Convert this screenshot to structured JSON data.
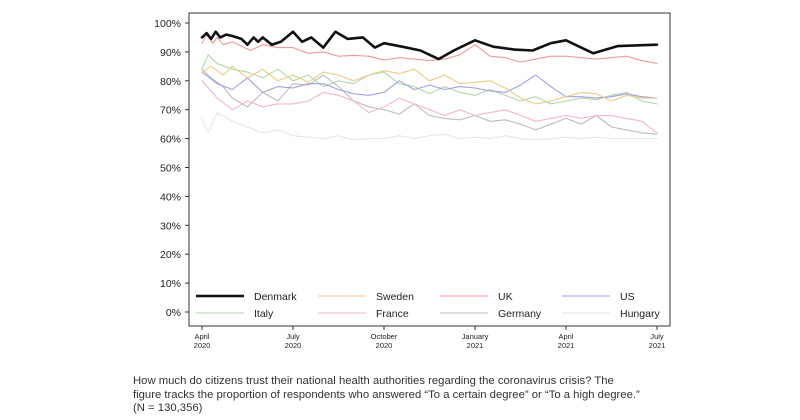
{
  "caption": {
    "line1": "How much do citizens trust their national health authorities regarding the coronavirus crisis? The",
    "line2": "figure tracks the proportion of respondents who answered “To a certain degree” or “To a high degree.”",
    "line3": "(N = 130,356)"
  },
  "chart_data": {
    "type": "line",
    "title": "",
    "xlabel": "",
    "ylabel": "",
    "ylim": [
      0,
      100
    ],
    "y_ticks": [
      "0%",
      "10%",
      "20%",
      "30%",
      "40%",
      "50%",
      "60%",
      "70%",
      "80%",
      "90%",
      "100%"
    ],
    "x_ticks": [
      {
        "x": 0,
        "line1": "April",
        "line2": "2020"
      },
      {
        "x": 3,
        "line1": "July",
        "line2": "2020"
      },
      {
        "x": 6,
        "line1": "October",
        "line2": "2020"
      },
      {
        "x": 9,
        "line1": "January",
        "line2": "2021"
      },
      {
        "x": 12,
        "line1": "April",
        "line2": "2021"
      },
      {
        "x": 15,
        "line1": "July",
        "line2": "2021"
      }
    ],
    "x_unit": "months since April 2020",
    "grid": false,
    "legend_position": "bottom inside plot, 4 columns",
    "series": [
      {
        "name": "Denmark",
        "color": "#111111",
        "width": 2.6,
        "x": [
          0,
          0.15,
          0.3,
          0.45,
          0.6,
          0.8,
          1.0,
          1.3,
          1.5,
          1.7,
          1.85,
          2.0,
          2.3,
          2.6,
          3.0,
          3.3,
          3.6,
          4.0,
          4.4,
          4.8,
          5.3,
          5.7,
          6.0,
          6.6,
          7.2,
          7.8,
          8.3,
          9.0,
          9.6,
          10.3,
          10.9,
          11.5,
          12.0,
          12.9,
          13.7,
          14.4,
          15.0
        ],
        "y": [
          95,
          96.5,
          94.5,
          97,
          95,
          96,
          95.5,
          94.5,
          92.5,
          95,
          93.5,
          95,
          92.5,
          93.5,
          97,
          93.5,
          95,
          91.5,
          97,
          94.5,
          95,
          91.5,
          93,
          91.8,
          90.5,
          87.5,
          90.5,
          94,
          91.8,
          90.8,
          90.5,
          93,
          94,
          89.5,
          92,
          92.3,
          92.5
        ]
      },
      {
        "name": "Sweden",
        "color": "#e8cc8a",
        "width": 1.1,
        "x": [
          0,
          0.3,
          0.7,
          1.0,
          1.5,
          2.0,
          2.5,
          3.0,
          3.5,
          4.0,
          4.5,
          5.0,
          5.5,
          6.0,
          6.5,
          7.0,
          7.5,
          8.0,
          8.5,
          9.0,
          9.5,
          10.0,
          10.5,
          11.0,
          11.5,
          12.0,
          12.5,
          13.0,
          13.5,
          14.0,
          14.5,
          15.0
        ],
        "y": [
          83,
          85,
          82,
          85,
          81,
          84,
          80,
          82,
          79.5,
          83,
          82,
          80,
          82,
          83.5,
          82.5,
          84,
          80,
          82,
          79,
          79.5,
          80,
          77.5,
          74,
          72,
          73,
          74.5,
          76,
          75.5,
          73,
          75,
          74,
          74
        ]
      },
      {
        "name": "UK",
        "color": "#ee9a9a",
        "width": 1.1,
        "x": [
          0,
          0.15,
          0.35,
          0.5,
          0.7,
          1.0,
          1.3,
          1.6,
          2.0,
          2.5,
          3.0,
          3.5,
          4.0,
          4.5,
          5.0,
          5.5,
          6.0,
          6.5,
          7.0,
          7.5,
          8.0,
          8.5,
          9.0,
          9.5,
          10.0,
          10.5,
          11.0,
          11.5,
          12.0,
          12.5,
          13.0,
          13.5,
          14.0,
          14.5,
          15.0
        ],
        "y": [
          93,
          96,
          93,
          95,
          92.5,
          93.5,
          92,
          90.5,
          92.5,
          91.5,
          91.5,
          89.5,
          90,
          88.5,
          88.8,
          88.5,
          87.2,
          88,
          87.5,
          87,
          87.5,
          89,
          92.5,
          88.5,
          88,
          86.5,
          87.5,
          88.5,
          88.5,
          88,
          87.5,
          88,
          88.5,
          87,
          86
        ]
      },
      {
        "name": "US",
        "color": "#a0a0dc",
        "width": 1.1,
        "x": [
          0,
          0.5,
          1.0,
          1.5,
          2.0,
          2.5,
          3.0,
          3.5,
          4.0,
          4.5,
          5.0,
          5.5,
          6.0,
          6.5,
          7.0,
          7.5,
          8.0,
          8.5,
          9.0,
          9.5,
          10.0,
          10.5,
          11.0,
          11.5,
          12.0,
          12.5,
          13.0,
          13.5,
          14.0,
          14.5,
          15.0
        ],
        "y": [
          83,
          79,
          77,
          81,
          76,
          78,
          77.5,
          79,
          79,
          77,
          75.5,
          75,
          76,
          80,
          77,
          78.5,
          77,
          78,
          77.5,
          76.5,
          76,
          78.5,
          82,
          78,
          74.5,
          74.5,
          74,
          74.5,
          75.5,
          74.5,
          74
        ]
      },
      {
        "name": "Italy",
        "color": "#b2d8a8",
        "width": 1.1,
        "x": [
          0,
          0.2,
          0.5,
          1.0,
          1.5,
          2.0,
          2.5,
          3.0,
          3.5,
          4.0,
          4.5,
          5.0,
          5.5,
          6.0,
          6.5,
          7.0,
          7.5,
          8.0,
          8.5,
          9.0,
          9.5,
          10.0,
          10.5,
          11.0,
          11.5,
          12.0,
          12.5,
          13.0,
          13.5,
          14.0,
          14.5,
          15.0
        ],
        "y": [
          84,
          89,
          86,
          84,
          83,
          81,
          84,
          80,
          82,
          78,
          80,
          79,
          82,
          83,
          79,
          78,
          75.5,
          78,
          76,
          75,
          77,
          75,
          73,
          74.5,
          72,
          73,
          74,
          73.5,
          75,
          76,
          73,
          72
        ]
      },
      {
        "name": "France",
        "color": "#f2b8c4",
        "width": 1.1,
        "x": [
          0,
          0.5,
          1.0,
          1.5,
          2.0,
          2.5,
          3.0,
          3.5,
          4.0,
          4.5,
          5.0,
          5.5,
          6.0,
          6.5,
          7.0,
          7.5,
          8.0,
          8.5,
          9.0,
          9.5,
          10.0,
          10.5,
          11.0,
          11.5,
          12.0,
          12.5,
          13.0,
          13.5,
          14.0,
          14.5,
          15.0
        ],
        "y": [
          80,
          74,
          70,
          73,
          71,
          72,
          72,
          73,
          76,
          75,
          73,
          69,
          71,
          74,
          72,
          70,
          68,
          70,
          68,
          69,
          70,
          68,
          66,
          67,
          68,
          67,
          68,
          68,
          67,
          66,
          62
        ]
      },
      {
        "name": "Germany",
        "color": "#bcbcbc",
        "width": 1.1,
        "x": [
          0,
          0.3,
          0.7,
          1.0,
          1.5,
          2.0,
          2.5,
          3.0,
          3.5,
          4.0,
          4.5,
          5.0,
          5.5,
          6.0,
          6.5,
          7.0,
          7.5,
          8.0,
          8.5,
          9.0,
          9.5,
          10.0,
          10.5,
          11.0,
          11.5,
          12.0,
          12.5,
          13.0,
          13.5,
          14.0,
          14.5,
          15.0
        ],
        "y": [
          84,
          81,
          78,
          74,
          71,
          76,
          73,
          79,
          78.5,
          82,
          78,
          73,
          71,
          70,
          68.5,
          72,
          68,
          67,
          66.5,
          68,
          66,
          66.5,
          65,
          63,
          65,
          67,
          65,
          68,
          64,
          63,
          62,
          61.5
        ]
      },
      {
        "name": "Hungary",
        "color": "#e6e6e6",
        "width": 1.1,
        "x": [
          0,
          0.2,
          0.5,
          1.0,
          1.5,
          2.0,
          2.5,
          3.0,
          3.5,
          4.0,
          4.5,
          5.0,
          5.5,
          6.0,
          6.5,
          7.0,
          7.5,
          8.0,
          8.5,
          9.0,
          9.5,
          10.0,
          10.5,
          11.0,
          11.5,
          12.0,
          12.5,
          13.0,
          13.5,
          14.0,
          14.5,
          15.0
        ],
        "y": [
          67,
          62,
          69,
          66,
          64,
          62,
          63,
          61,
          60.5,
          60,
          61,
          59.5,
          60,
          60,
          61,
          60,
          61,
          61.5,
          60,
          60.5,
          60,
          61,
          60,
          59.5,
          60,
          60.5,
          60,
          60.5,
          60,
          60,
          60,
          60
        ]
      }
    ],
    "legend": [
      {
        "name": "Denmark",
        "color": "#111111",
        "width": 2.6
      },
      {
        "name": "Sweden",
        "color": "#e8cc8a",
        "width": 1.1
      },
      {
        "name": "UK",
        "color": "#ee9a9a",
        "width": 1.1
      },
      {
        "name": "US",
        "color": "#a0a0dc",
        "width": 1.1
      },
      {
        "name": "Italy",
        "color": "#b2d8a8",
        "width": 1.1
      },
      {
        "name": "France",
        "color": "#f2b8c4",
        "width": 1.1
      },
      {
        "name": "Germany",
        "color": "#bcbcbc",
        "width": 1.1
      },
      {
        "name": "Hungary",
        "color": "#e6e6e6",
        "width": 1.1
      }
    ]
  }
}
